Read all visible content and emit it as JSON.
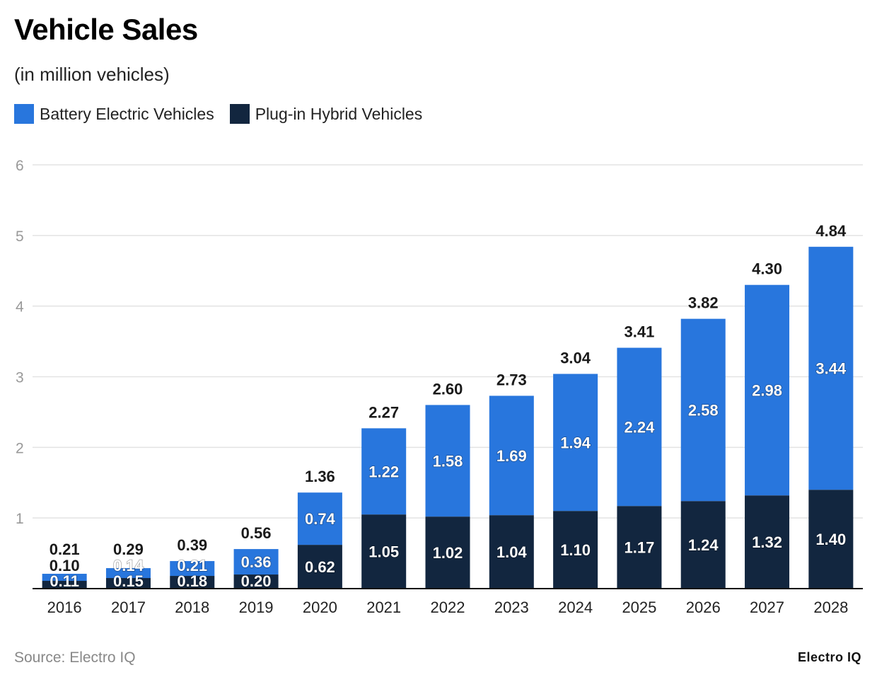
{
  "chart_data": {
    "type": "bar",
    "stacked": true,
    "title": "Vehicle Sales",
    "subtitle": "(in million vehicles)",
    "categories": [
      "2016",
      "2017",
      "2018",
      "2019",
      "2020",
      "2021",
      "2022",
      "2023",
      "2024",
      "2025",
      "2026",
      "2027",
      "2028"
    ],
    "series": [
      {
        "name": "Plug-in Hybrid Vehicles",
        "color": "#12263f",
        "values": [
          0.11,
          0.15,
          0.18,
          0.2,
          0.62,
          1.05,
          1.02,
          1.04,
          1.1,
          1.17,
          1.24,
          1.32,
          1.4
        ]
      },
      {
        "name": "Battery Electric Vehicles",
        "color": "#2876dd",
        "values": [
          0.1,
          0.14,
          0.21,
          0.36,
          0.74,
          1.22,
          1.58,
          1.69,
          1.94,
          2.24,
          2.58,
          2.98,
          3.44
        ]
      }
    ],
    "totals": [
      "0.21",
      "0.29",
      "0.39",
      "0.56",
      "1.36",
      "2.27",
      "2.60",
      "2.73",
      "3.04",
      "3.41",
      "3.82",
      "4.30",
      "4.84"
    ],
    "ylim": [
      0,
      6
    ],
    "yticks": [
      1,
      2,
      3,
      4,
      5,
      6
    ],
    "grid": true,
    "legend_position": "top-left",
    "xlabel": "",
    "ylabel": ""
  },
  "source": "Source: Electro IQ",
  "logo": "Electro IQ"
}
